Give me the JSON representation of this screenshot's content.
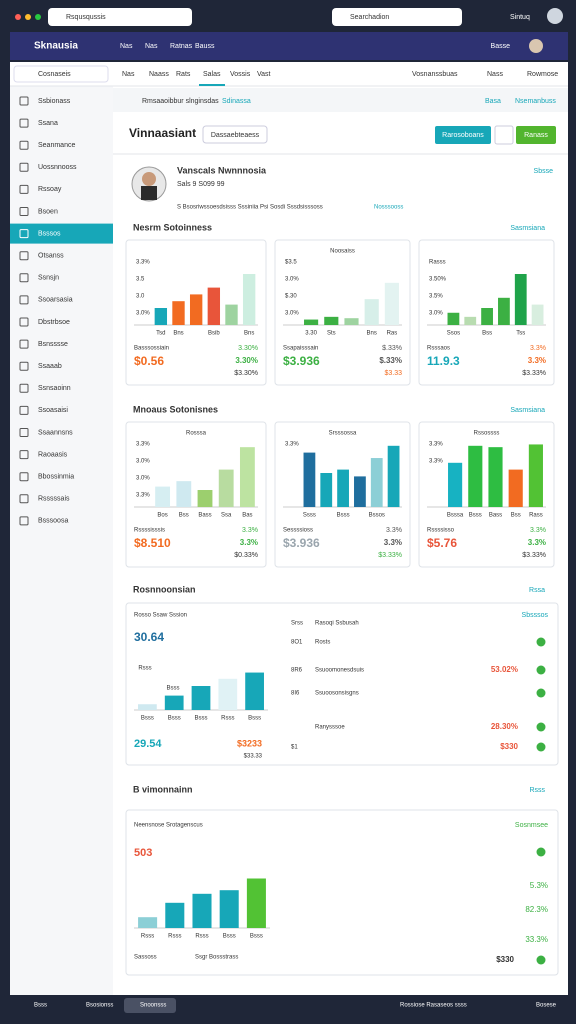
{
  "browser": {
    "search": "Rsqusqussis",
    "search2": "Searchadion",
    "user": "Sintuq"
  },
  "nav": {
    "brand": "Sknausia",
    "items": [
      "Nas",
      "Nas",
      "Ratnas",
      "Bauss"
    ],
    "right": "Basse"
  },
  "sidebar": {
    "select": "Cosnaseis",
    "active": 6,
    "items": [
      "Ssbionass",
      "Ssana",
      "Seanmance",
      "Uossnnooss",
      "Rssoay",
      "Bsoen",
      "Bsssos",
      "Otsanss",
      "Ssnsjn",
      "Ssoarsasia",
      "Dbstrbsoe",
      "Bsnsssse",
      "Ssaaab",
      "Ssnsaoinn",
      "Ssoasaisi",
      "Ssaannsns",
      "Raoaasis",
      "Bbossinmia",
      "Rsssssais",
      "Bsssoosa"
    ]
  },
  "tabs": {
    "active": 3,
    "items": [
      "Nas",
      "Naass",
      "Rats",
      "Salas",
      "Vossis",
      "Vast"
    ],
    "right": [
      "Vosnanssbuas",
      "Nass",
      "Rowmose"
    ]
  },
  "breadcrumb": {
    "text": "Rmsaaoibbur slnginsdas",
    "link": "Sdinassa",
    "right": [
      "Basa",
      "Nsemanbuss"
    ]
  },
  "header": {
    "title": "Vinnaasiant",
    "button": "Dassaebteaess",
    "actions": [
      "Rarosoboans",
      "Ranass"
    ]
  },
  "profile": {
    "name": "Vanscals Nwnnnosia",
    "meta": "Sals 9 S099 99",
    "desc": "S Bsosriwssoesdsisss Sssiniia Psi Sosdi Sssdsisssoss",
    "link": "Nosssooss",
    "right": "Sbsse"
  },
  "sections": [
    {
      "title": "Nesrm Sotoinness",
      "right": "Sasmsiana",
      "cards": [
        {
          "yticks": [
            "3.3%",
            "3.5",
            "3.0",
            "3.0%"
          ],
          "values": [
            25,
            35,
            45,
            55,
            30,
            75
          ],
          "colors": [
            "#17a7b8",
            "#f26b21",
            "#f26b21",
            "#e8553a",
            "#9ed3a0",
            "#cdeee0"
          ],
          "categories": [
            "Tsd",
            "Bns",
            null,
            "Bsib",
            null,
            "Bns"
          ],
          "caption": "Basssossiain",
          "value": "$0.56",
          "value_color": "#f26b21",
          "delta": "3.30%",
          "delta_color": "#3cb043",
          "sub": "$3.30%"
        },
        {
          "title": "Noosaiss",
          "yticks": [
            "$3.5",
            "3.0%",
            "$.30",
            "3.0%"
          ],
          "values": [
            8,
            12,
            10,
            38,
            62
          ],
          "colors": [
            "#3cb043",
            "#3cb043",
            "#9ed3a0",
            "#d7efe9",
            "#e3f3f1"
          ],
          "categories": [
            "3.30",
            "Sts",
            null,
            "Bns",
            "Ras"
          ],
          "caption": "Ssapaisssain",
          "value": "$3.936",
          "value_color": "#3cb043",
          "delta": "$.33%",
          "delta_color": "#555",
          "sub": "$3.33",
          "sub_color": "#f26b21"
        },
        {
          "yticks": [
            "Rasss",
            "3.50%",
            "3.5%",
            "3.0%"
          ],
          "values": [
            18,
            12,
            25,
            40,
            75,
            30
          ],
          "colors": [
            "#3cb043",
            "#b8dcb0",
            "#3cb043",
            "#3cb043",
            "#1fa34a",
            "#d8eedf"
          ],
          "categories": [
            "Ssos",
            null,
            "Bss",
            null,
            "Tss",
            null
          ],
          "caption": "Rsssaos",
          "value": "11.9.3",
          "value_color": "#17a7b8",
          "delta": "3.3%",
          "delta_color": "#f26b21",
          "sub": "$3.33%"
        }
      ]
    },
    {
      "title": "Mnoaus Sotonisnes",
      "right": "Sasmsiana",
      "cards": [
        {
          "title": "Rosssa",
          "yticks": [
            "3.3%",
            "3.0%",
            "3.0%",
            "3.3%"
          ],
          "values": [
            30,
            38,
            25,
            55,
            88
          ],
          "colors": [
            "#d6eef2",
            "#cfe9f0",
            "#9ccf6e",
            "#b8dca0",
            "#bde3a1"
          ],
          "categories": [
            "Bos",
            "Bss",
            "Bass",
            "Ssa",
            "Bas"
          ],
          "caption": "Rssssisssis",
          "value": "$8.510",
          "value_color": "#f26b21",
          "delta": "3.3%",
          "delta_color": "#3cb043",
          "sub": "$0.33%"
        },
        {
          "title": "Srsssossa",
          "yticks": [
            "3.3%"
          ],
          "values": [
            80,
            50,
            55,
            45,
            72,
            90
          ],
          "colors": [
            "#1f6e9e",
            "#17a7b8",
            "#17a7b8",
            "#1f6e9e",
            "#8ccfd6",
            "#17a7b8"
          ],
          "categories": [
            "Ssss",
            null,
            "Bsss",
            null,
            "Bssos",
            null
          ],
          "caption": "Sessssioss",
          "value": "$3.936",
          "value_color": "#9aa5ad",
          "delta": "3.3%",
          "delta_color": "#555",
          "sub": "$3.33%",
          "sub_color": "#3cb043"
        },
        {
          "title": "Rssossss",
          "yticks": [
            "3.3%",
            "3.3%"
          ],
          "values": [
            65,
            90,
            88,
            55,
            92
          ],
          "colors": [
            "#17b2c2",
            "#2ebd42",
            "#2ebd42",
            "#f26b21",
            "#52c234"
          ],
          "categories": [
            "Bsssa",
            "Bsss",
            "Bass",
            "Bss",
            "Rass"
          ],
          "caption": "Rssssisso",
          "value": "$5.76",
          "value_color": "#e8553a",
          "delta": "3.3%",
          "delta_color": "#3cb043",
          "sub": "$3.33%"
        }
      ]
    }
  ],
  "panel1": {
    "title": "Rosnnoonsian",
    "right": "Rssa",
    "caption": "Rosso Ssaw Sssion",
    "value": "30.64",
    "tags": [
      "Rsss",
      "Bsss"
    ],
    "values": [
      12,
      30,
      50,
      65,
      78
    ],
    "colors": [
      "#cfe9f0",
      "#17a7b8",
      "#17a7b8",
      "#e0f2f5",
      "#17a7b8"
    ],
    "categories": [
      "Bsss",
      "Bsss",
      "Bsss",
      "Rsss",
      "Bsss"
    ],
    "bottom_value": "29.54",
    "bottom_right": "$3233",
    "bottom_sub": "$33.33",
    "list_title": "Sbsssos",
    "rows": [
      {
        "a": "Srss",
        "b": "Rasoqi Ssbusah",
        "v": ""
      },
      {
        "a": "8O1",
        "b": "Rosts",
        "v": ""
      },
      {
        "a": "8R6",
        "b": "Ssuoomonesdsuis",
        "v": "53.02%"
      },
      {
        "a": "8I6",
        "b": "Ssuoosonsisgns",
        "v": ""
      },
      {
        "a": "",
        "b": "Ranysssoe",
        "v": "28.30%"
      },
      {
        "a": "$1",
        "b": "",
        "v": "$330"
      }
    ]
  },
  "panel2": {
    "title": "B vimonnainn",
    "right": "Rsss",
    "caption": "Neensnose Srotagenscus",
    "value": "503",
    "values": [
      12,
      28,
      38,
      42,
      55
    ],
    "colors": [
      "#8ccfd6",
      "#17a7b8",
      "#17a7b8",
      "#17a7b8",
      "#52c234"
    ],
    "categories": [
      "Rsss",
      "Rsss",
      "Rsss",
      "Bsss",
      "Bsss"
    ],
    "list_title": "Sosnmsee",
    "rows": [
      "5.3%",
      "82.3%",
      "33.3%"
    ],
    "bottom": "Sassoss",
    "bottom_mid": "Ssgr Bossstrass",
    "bottom_right": "$330"
  },
  "footer": {
    "items": [
      "Bsss",
      "Bsosionss",
      "Snoonsss"
    ],
    "right": [
      "Rossiose Rasaseos ssss",
      "Bosese"
    ]
  }
}
